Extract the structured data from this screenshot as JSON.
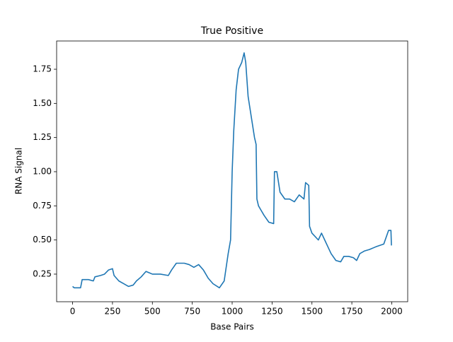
{
  "chart_data": {
    "type": "line",
    "title": "True Positive",
    "x_label": "Base Pairs",
    "y_label": "RNA Signal",
    "series": [
      {
        "name": "signal",
        "color": "#1f77b4",
        "x": [
          0,
          10,
          50,
          60,
          100,
          130,
          140,
          175,
          200,
          225,
          250,
          260,
          290,
          320,
          350,
          380,
          400,
          430,
          460,
          480,
          500,
          550,
          600,
          620,
          650,
          700,
          730,
          760,
          790,
          820,
          850,
          880,
          920,
          950,
          975,
          990,
          1000,
          1010,
          1025,
          1040,
          1060,
          1075,
          1085,
          1100,
          1120,
          1140,
          1150,
          1155,
          1165,
          1180,
          1200,
          1230,
          1260,
          1265,
          1280,
          1300,
          1330,
          1360,
          1390,
          1420,
          1450,
          1460,
          1480,
          1485,
          1500,
          1540,
          1560,
          1580,
          1600,
          1620,
          1650,
          1680,
          1700,
          1730,
          1760,
          1780,
          1800,
          1830,
          1860,
          1900,
          1950,
          1980,
          1995,
          1998
        ],
        "values": [
          0.16,
          0.15,
          0.15,
          0.21,
          0.21,
          0.2,
          0.23,
          0.24,
          0.25,
          0.28,
          0.29,
          0.24,
          0.2,
          0.18,
          0.16,
          0.17,
          0.2,
          0.23,
          0.27,
          0.26,
          0.25,
          0.25,
          0.24,
          0.28,
          0.33,
          0.33,
          0.32,
          0.3,
          0.32,
          0.28,
          0.22,
          0.18,
          0.15,
          0.2,
          0.4,
          0.5,
          1.0,
          1.3,
          1.6,
          1.75,
          1.8,
          1.87,
          1.8,
          1.55,
          1.4,
          1.25,
          1.2,
          0.8,
          0.75,
          0.72,
          0.68,
          0.63,
          0.62,
          1.0,
          1.0,
          0.85,
          0.8,
          0.8,
          0.78,
          0.83,
          0.8,
          0.92,
          0.9,
          0.6,
          0.55,
          0.5,
          0.55,
          0.5,
          0.45,
          0.4,
          0.35,
          0.34,
          0.38,
          0.38,
          0.37,
          0.35,
          0.4,
          0.42,
          0.43,
          0.45,
          0.47,
          0.57,
          0.57,
          0.46
        ]
      }
    ],
    "xlim": [
      -100,
      2100
    ],
    "ylim": [
      0.048,
      1.957
    ],
    "xticks": [
      0,
      250,
      500,
      750,
      1000,
      1250,
      1500,
      1750,
      2000
    ],
    "yticks": [
      0.25,
      {
        "value": 0.5,
        "label": "0.50"
      },
      0.75,
      {
        "value": 1.0,
        "label": "1.00"
      },
      1.25,
      {
        "value": 1.5,
        "label": "1.50"
      },
      1.75
    ]
  }
}
